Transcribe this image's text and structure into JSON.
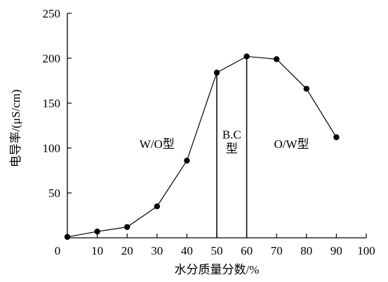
{
  "chart_data": {
    "type": "line",
    "title": "",
    "xlabel": "水分质量分数/%",
    "ylabel": "电导率/(μS/cm)",
    "xlim": [
      0,
      100
    ],
    "ylim": [
      0,
      250
    ],
    "x_ticks": [
      0,
      10,
      20,
      30,
      40,
      50,
      60,
      70,
      80,
      90,
      100
    ],
    "y_ticks": [
      50,
      100,
      150,
      200,
      250
    ],
    "grid": false,
    "legend": "none",
    "series": [
      {
        "x": [
          0,
          10,
          20,
          30,
          40,
          50,
          60,
          70,
          80,
          90
        ],
        "values": [
          1,
          7,
          12,
          35,
          86,
          184,
          202,
          199,
          166,
          112
        ]
      }
    ],
    "boundaries": [
      {
        "x": 50,
        "y": 184
      },
      {
        "x": 60,
        "y": 202
      }
    ],
    "annotations": [
      {
        "lines": [
          "W/O型"
        ],
        "x": 30,
        "y": 100
      },
      {
        "lines": [
          "B.C",
          "型"
        ],
        "x": 55,
        "y": 106
      },
      {
        "lines": [
          "O/W型"
        ],
        "x": 75,
        "y": 100
      }
    ]
  }
}
